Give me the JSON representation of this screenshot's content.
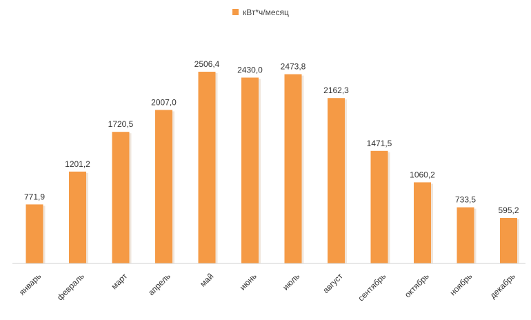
{
  "chart_data": {
    "type": "bar",
    "categories": [
      "январь",
      "февраль",
      "март",
      "апрель",
      "май",
      "июнь",
      "июль",
      "август",
      "сентябрь",
      "октябрь",
      "ноябрь",
      "декабрь"
    ],
    "series": [
      {
        "name": "кВт*ч/месяц",
        "values": [
          771.9,
          1201.2,
          1720.5,
          2007.0,
          2506.4,
          2430.0,
          2473.8,
          2162.3,
          1471.5,
          1060.2,
          733.5,
          595.2
        ],
        "labels": [
          "771,9",
          "1201,2",
          "1720,5",
          "2007,0",
          "2506,4",
          "2430,0",
          "2473,8",
          "2162,3",
          "1471,5",
          "1060,2",
          "733,5",
          "595,2"
        ],
        "color": "#F59A45"
      }
    ],
    "title": "",
    "xlabel": "",
    "ylabel": "",
    "ylim": [
      0,
      2506.4
    ],
    "grid": false,
    "legend": "top-center"
  }
}
